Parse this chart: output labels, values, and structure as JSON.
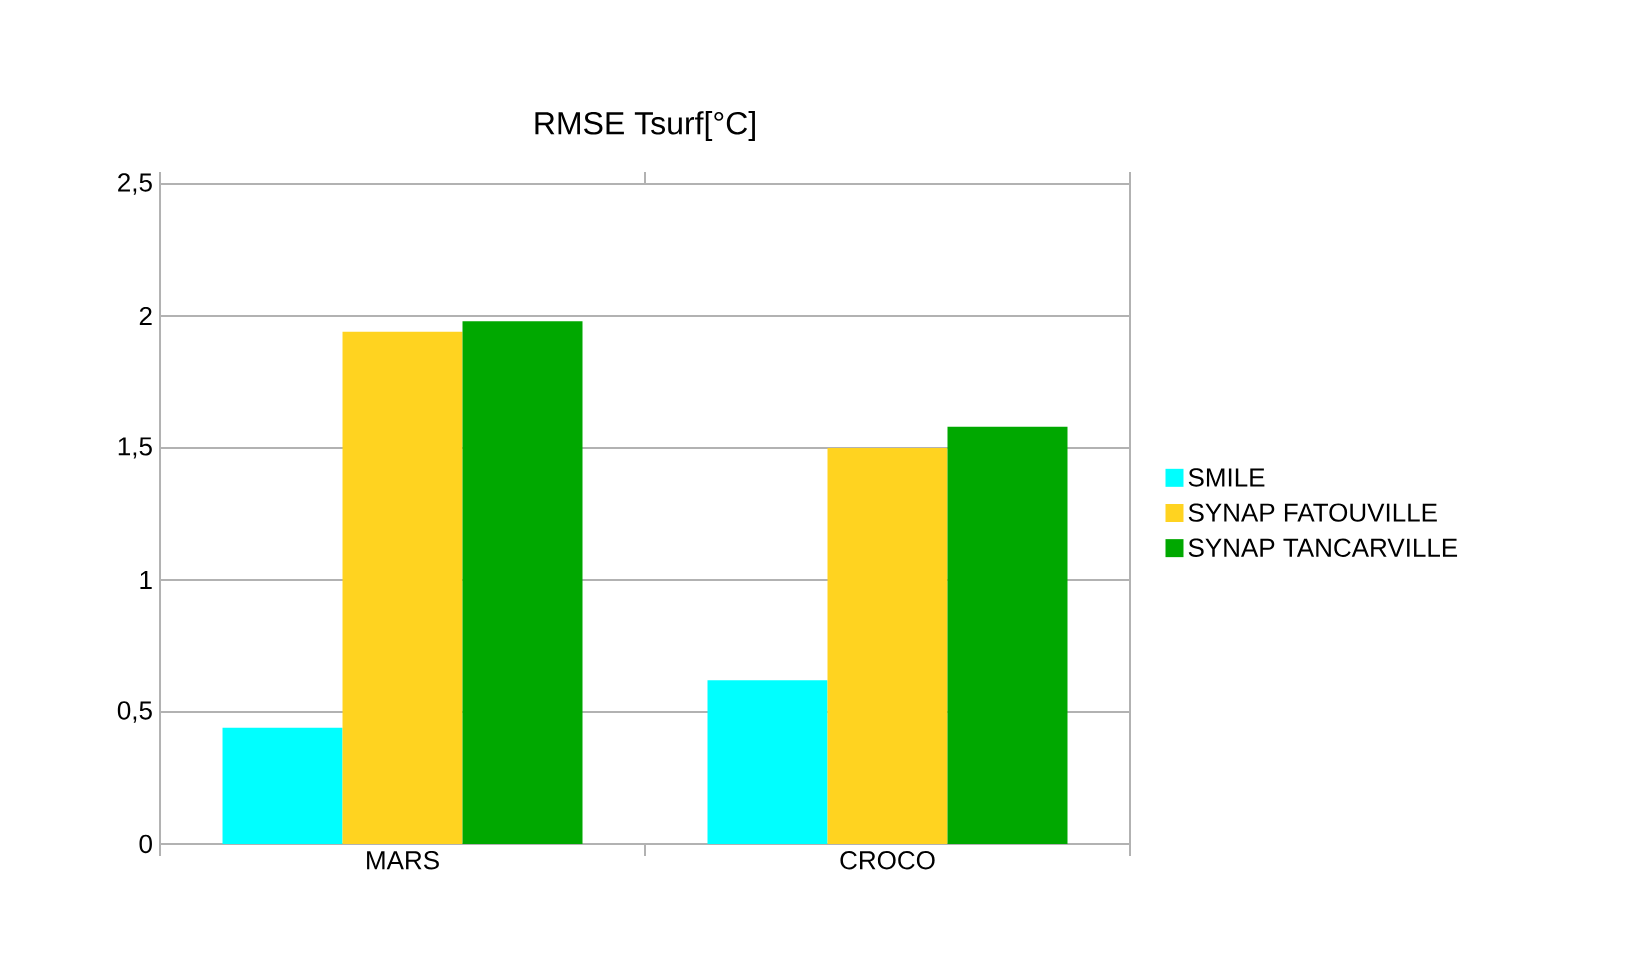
{
  "chart_data": {
    "type": "bar",
    "title": "RMSE Tsurf[°C]",
    "categories": [
      "MARS",
      "CROCO"
    ],
    "series": [
      {
        "name": "SMILE",
        "color": "#00ffff",
        "values": [
          0.44,
          0.62
        ]
      },
      {
        "name": "SYNAP FATOUVILLE",
        "color": "#ffd320",
        "values": [
          1.94,
          1.5
        ]
      },
      {
        "name": "SYNAP TANCARVILLE",
        "color": "#00a800",
        "values": [
          1.98,
          1.58
        ]
      }
    ],
    "ylim": [
      0,
      2.5
    ],
    "yticks": [
      0,
      {
        "value": 0.5,
        "label": "0,5"
      },
      1,
      {
        "value": 1.5,
        "label": "1,5"
      },
      2,
      {
        "value": 2.5,
        "label": "2,5"
      }
    ],
    "grid": "y",
    "legend": "right"
  }
}
